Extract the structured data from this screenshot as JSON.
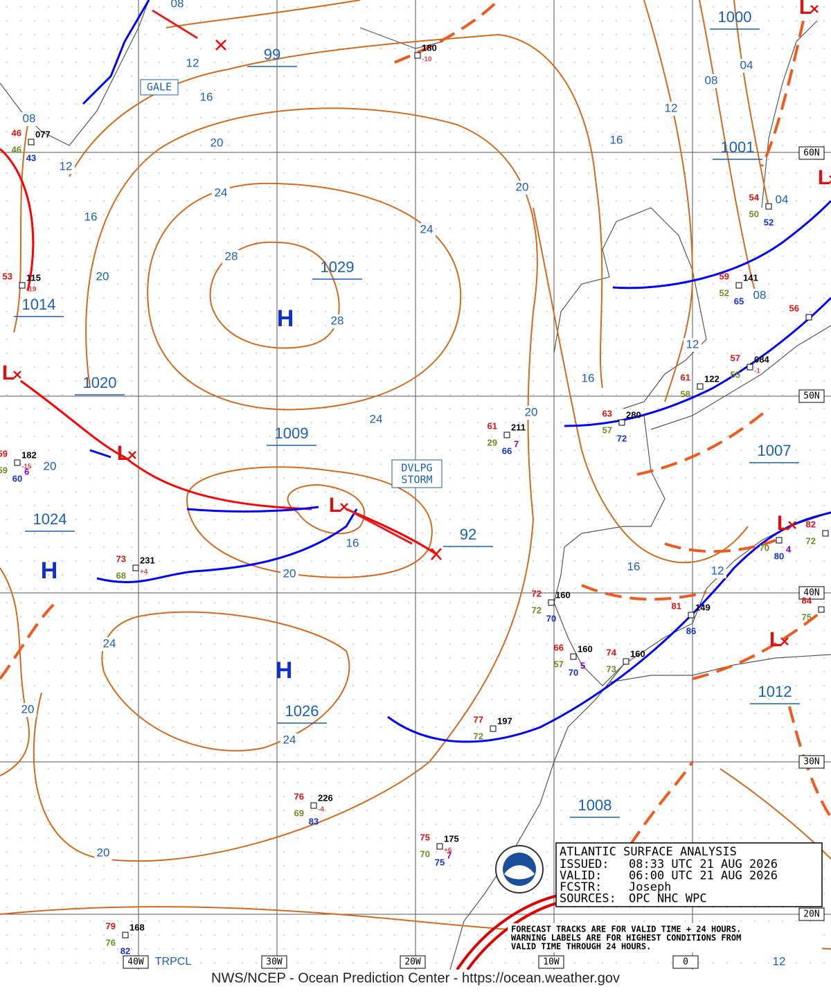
{
  "map": {
    "centers": [
      "99",
      "1029",
      "1014",
      "1020",
      "1009",
      "1024",
      "1026",
      "92",
      "1000",
      "1001",
      "1007",
      "1012",
      "1008"
    ],
    "highs": [
      "H",
      "H",
      "H"
    ],
    "lows": [
      "L",
      "L",
      "L",
      "L",
      "L",
      "L",
      "L"
    ],
    "isobar_labels": [
      "08",
      "12",
      "16",
      "20",
      "24",
      "28",
      "28",
      "24",
      "20",
      "16",
      "12",
      "08",
      "04",
      "08",
      "12",
      "16",
      "20",
      "20",
      "24",
      "20",
      "16",
      "20",
      "16",
      "12",
      "08",
      "04",
      "16",
      "12",
      "24",
      "20",
      "24",
      "20",
      "12"
    ],
    "grid_labels": [
      "60N",
      "50N",
      "40N",
      "30N",
      "20N",
      "40W",
      "30W",
      "20W",
      "10W",
      "0"
    ],
    "gale": "GALE",
    "storm": [
      "DVLPG",
      "STORM"
    ],
    "region": "TRPCL",
    "stations": [
      {
        "temp": "46",
        "dew": "46",
        "pres": "077",
        "blue": "43"
      },
      {
        "temp": "53",
        "pres": "115",
        "tend": "-19"
      },
      {
        "temp": "59",
        "dew": "59",
        "pres": "182",
        "tend": "-15",
        "purple": "6",
        "blue": "60"
      },
      {
        "temp": "73",
        "dew": "68",
        "pres": "231",
        "tend": "+4"
      },
      {
        "temp": "61",
        "dew": "29",
        "pres": "211",
        "purple": "7",
        "blue": "66"
      },
      {
        "pres": "180",
        "tend": "-10"
      },
      {
        "temp": "59",
        "dew": "52",
        "pres": "141",
        "blue": "65"
      },
      {
        "temp": "56"
      },
      {
        "temp": "57",
        "dew": "55",
        "pres": "084",
        "tend": "-1"
      },
      {
        "temp": "61",
        "dew": "58",
        "pres": "122"
      },
      {
        "temp": "63",
        "dew": "57",
        "pres": "280",
        "blue": "72"
      },
      {
        "temp": "72",
        "dew": "72",
        "pres": "160",
        "blue": "70"
      },
      {
        "temp": "66",
        "dew": "57",
        "pres": "160",
        "purple": "5",
        "blue": "70"
      },
      {
        "temp": "74",
        "dew": "73",
        "pres": "160"
      },
      {
        "temp": "81",
        "pres": "149",
        "blue": "86"
      },
      {
        "temp": "77",
        "dew": "72",
        "pres": "197"
      },
      {
        "temp": "76",
        "dew": "69",
        "pres": "226",
        "tend": "-4",
        "blue": "83"
      },
      {
        "temp": "75",
        "dew": "70",
        "pres": "175",
        "tend": "+6",
        "purple": "7",
        "blue": "75"
      },
      {
        "temp": "79",
        "dew": "76",
        "pres": "168",
        "blue": "82"
      },
      {
        "temp": "54",
        "dew": "50",
        "blue": "52"
      },
      {
        "dew": "70",
        "purple": "4",
        "blue": "80"
      },
      {
        "temp": "82",
        "dew": "72"
      },
      {
        "temp": "84",
        "dew": "75"
      }
    ],
    "info": {
      "title": "ATLANTIC SURFACE ANALYSIS",
      "lines": [
        [
          "ISSUED:",
          "08:33 UTC 21 AUG 2026"
        ],
        [
          "VALID:",
          "06:00 UTC 21 AUG 2026"
        ],
        [
          "FCSTR:",
          "Joseph"
        ],
        [
          "SOURCES:",
          "OPC NHC WPC"
        ]
      ]
    },
    "note": [
      "FORECAST TRACKS ARE FOR VALID TIME + 24 HOURS.",
      "WARNING LABELS ARE FOR HIGHEST CONDITIONS FROM",
      "VALID TIME THROUGH 24 HOURS."
    ],
    "footer": "NWS/NCEP - Ocean Prediction Center - https://ocean.weather.gov"
  }
}
